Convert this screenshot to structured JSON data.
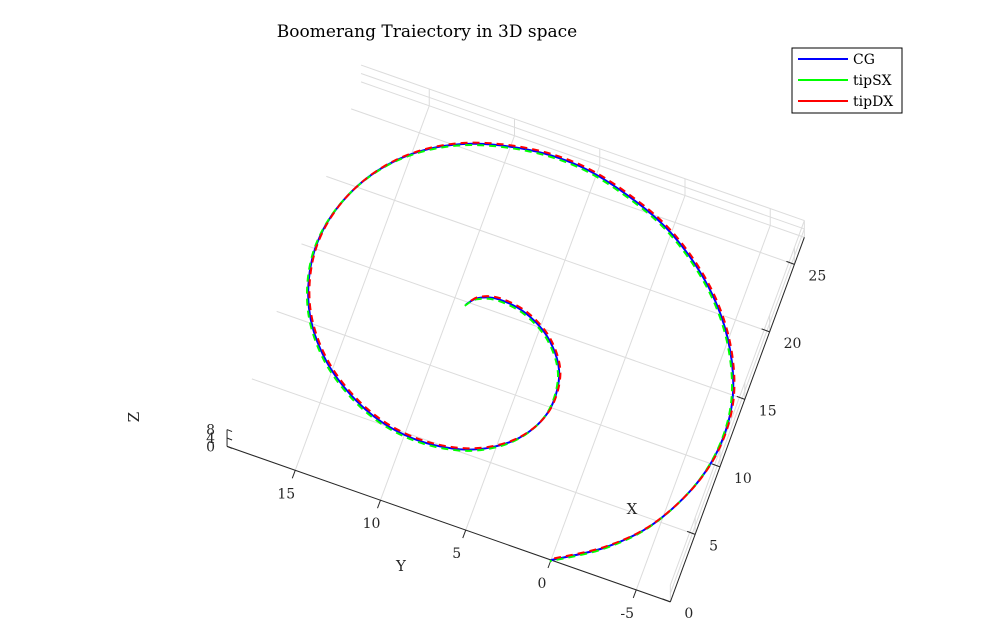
{
  "chart_data": {
    "type": "line",
    "title": "Boomerang Traiectory in 3D space",
    "xlabel": "X",
    "ylabel": "Y",
    "zlabel": "Z",
    "x_ticks": [
      "0",
      "5",
      "10",
      "15",
      "20",
      "25"
    ],
    "y_ticks": [
      "-5",
      "0",
      "5",
      "10",
      "15"
    ],
    "z_ticks": [
      "0",
      "4",
      "8"
    ],
    "xlim": [
      0,
      27
    ],
    "ylim": [
      -7,
      19
    ],
    "zlim": [
      0,
      8
    ],
    "grid": true,
    "legend_position": "top-right",
    "series": [
      {
        "name": "CG",
        "color": "#0000ff",
        "style": "solid"
      },
      {
        "name": "tipSX",
        "color": "#00ff00",
        "style": "dashed"
      },
      {
        "name": "tipDX",
        "color": "#ff0000",
        "style": "dashed"
      }
    ],
    "trajectory_xy": [
      [
        0.0,
        0.0
      ],
      [
        2.0,
        -2.5
      ],
      [
        4.5,
        -4.5
      ],
      [
        8.0,
        -6.0
      ],
      [
        11.5,
        -6.6
      ],
      [
        15.0,
        -6.3
      ],
      [
        18.5,
        -5.0
      ],
      [
        21.5,
        -3.0
      ],
      [
        24.0,
        -0.3
      ],
      [
        25.5,
        2.5
      ],
      [
        26.5,
        6.0
      ],
      [
        26.3,
        9.5
      ],
      [
        25.0,
        13.0
      ],
      [
        22.5,
        15.8
      ],
      [
        19.0,
        17.6
      ],
      [
        15.0,
        18.2
      ],
      [
        11.0,
        17.4
      ],
      [
        7.8,
        15.4
      ],
      [
        5.6,
        12.5
      ],
      [
        4.8,
        9.5
      ],
      [
        5.3,
        6.5
      ],
      [
        7.0,
        4.2
      ],
      [
        9.5,
        3.0
      ],
      [
        12.3,
        3.1
      ],
      [
        14.4,
        4.3
      ],
      [
        15.6,
        6.0
      ],
      [
        15.9,
        7.7
      ],
      [
        15.5,
        8.8
      ],
      [
        14.8,
        9.3
      ]
    ]
  }
}
